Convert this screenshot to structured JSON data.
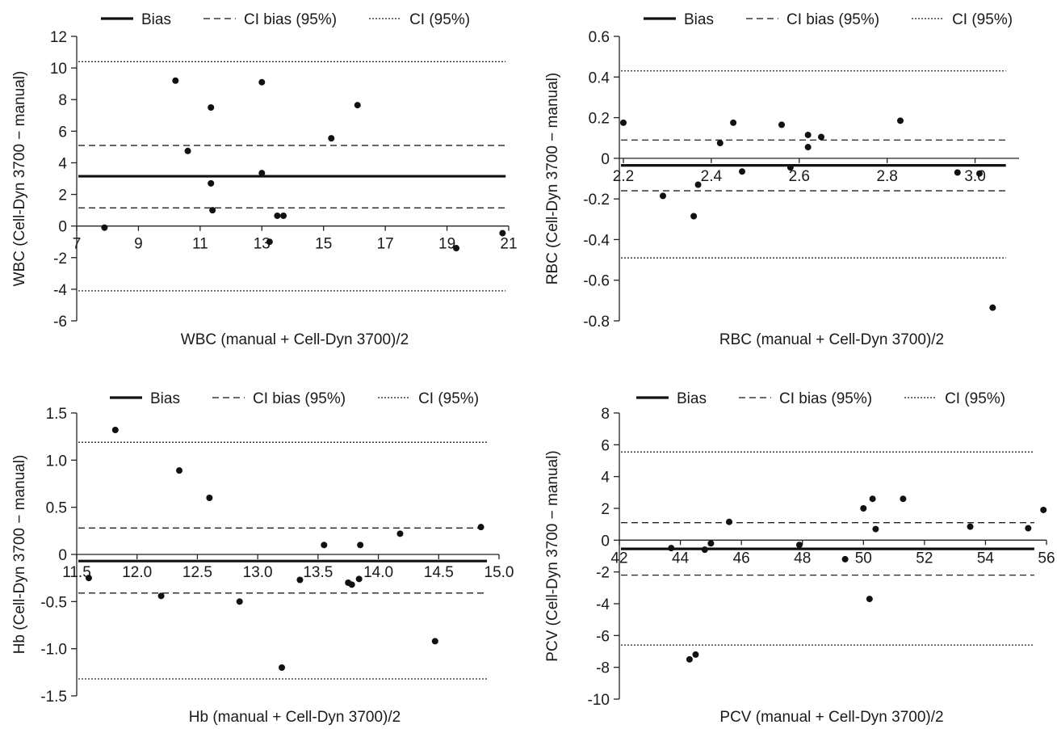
{
  "legend": {
    "bias": "Bias",
    "ci_bias": "CI bias (95%)",
    "ci": "CI (95%)"
  },
  "chart_data": [
    {
      "type": "scatter",
      "name": "WBC",
      "xlabel": "WBC (manual + Cell-Dyn 3700)/2",
      "ylabel": "WBC (Cell-Dyn 3700 − manual)",
      "xlim": [
        7,
        21
      ],
      "ylim": [
        -6,
        12
      ],
      "x_ticks": [
        7,
        9,
        11,
        13,
        15,
        17,
        19,
        21
      ],
      "x_tick_labels": [
        "7",
        "9",
        "11",
        "13",
        "15",
        "17",
        "19",
        "21"
      ],
      "y_ticks": [
        -6,
        -4,
        -2,
        0,
        2,
        4,
        6,
        8,
        10,
        12
      ],
      "y_tick_labels": [
        "-6",
        "-4",
        "-2",
        "0",
        "2",
        "4",
        "6",
        "8",
        "10",
        "12"
      ],
      "bias": 3.15,
      "ci_bias": [
        1.15,
        5.1
      ],
      "ci": [
        -4.1,
        10.4
      ],
      "line_x_end": 20.9,
      "points": [
        {
          "x": 7.9,
          "y": -0.1
        },
        {
          "x": 10.2,
          "y": 9.2
        },
        {
          "x": 10.6,
          "y": 4.75
        },
        {
          "x": 11.35,
          "y": 7.5
        },
        {
          "x": 11.35,
          "y": 2.7
        },
        {
          "x": 11.4,
          "y": 1.0
        },
        {
          "x": 13.0,
          "y": 9.1
        },
        {
          "x": 13.0,
          "y": 3.35
        },
        {
          "x": 13.25,
          "y": -1.0
        },
        {
          "x": 13.5,
          "y": 0.65
        },
        {
          "x": 13.7,
          "y": 0.65
        },
        {
          "x": 15.25,
          "y": 5.55
        },
        {
          "x": 16.1,
          "y": 7.65
        },
        {
          "x": 19.3,
          "y": -1.4
        },
        {
          "x": 20.8,
          "y": -0.45
        }
      ]
    },
    {
      "type": "scatter",
      "name": "RBC",
      "xlabel": "RBC (manual + Cell-Dyn 3700)/2",
      "ylabel": "RBC (Cell-Dyn 3700 − manual)",
      "xlim": [
        2.2,
        3.1
      ],
      "ylim": [
        -0.8,
        0.6
      ],
      "x_ticks": [
        2.2,
        2.4,
        2.6,
        2.8,
        3.0
      ],
      "x_tick_labels": [
        "2.2",
        "2.4",
        "2.6",
        "2.8",
        "3.0"
      ],
      "y_ticks": [
        -0.8,
        -0.6,
        -0.4,
        -0.2,
        0,
        0.2,
        0.4,
        0.6
      ],
      "y_tick_labels": [
        "-0.8",
        "-0.6",
        "-0.4",
        "-0.2",
        "0",
        "0.2",
        "0.4",
        "0.6"
      ],
      "bias": -0.035,
      "ci_bias": [
        -0.16,
        0.09
      ],
      "ci": [
        -0.49,
        0.43
      ],
      "line_x_end": 3.07,
      "points": [
        {
          "x": 2.2,
          "y": 0.175
        },
        {
          "x": 2.29,
          "y": -0.185
        },
        {
          "x": 2.36,
          "y": -0.285
        },
        {
          "x": 2.37,
          "y": -0.13
        },
        {
          "x": 2.42,
          "y": 0.075
        },
        {
          "x": 2.45,
          "y": 0.175
        },
        {
          "x": 2.47,
          "y": -0.065
        },
        {
          "x": 2.56,
          "y": 0.165
        },
        {
          "x": 2.58,
          "y": -0.045
        },
        {
          "x": 2.62,
          "y": 0.055
        },
        {
          "x": 2.62,
          "y": 0.115
        },
        {
          "x": 2.65,
          "y": 0.105
        },
        {
          "x": 2.83,
          "y": 0.185
        },
        {
          "x": 2.96,
          "y": -0.07
        },
        {
          "x": 3.01,
          "y": -0.075
        },
        {
          "x": 3.04,
          "y": -0.735
        }
      ]
    },
    {
      "type": "scatter",
      "name": "Hb",
      "xlabel": "Hb (manual + Cell-Dyn 3700)/2",
      "ylabel": "Hb (Cell-Dyn 3700 − manual)",
      "xlim": [
        11.5,
        15.0
      ],
      "ylim": [
        -1.5,
        1.5
      ],
      "x_ticks": [
        11.5,
        12.0,
        12.5,
        13.0,
        13.5,
        14.0,
        14.5,
        15.0
      ],
      "x_tick_labels": [
        "11.5",
        "12.0",
        "12.5",
        "13.0",
        "13.5",
        "14.0",
        "14.5",
        "15.0"
      ],
      "y_ticks": [
        -1.5,
        -1.0,
        -0.5,
        0,
        0.5,
        1.0,
        1.5
      ],
      "y_tick_labels": [
        "-1.5",
        "-1.0",
        "-0.5",
        "0",
        "0.5",
        "1.0",
        "1.5"
      ],
      "bias": -0.07,
      "ci_bias": [
        -0.41,
        0.28
      ],
      "ci": [
        -1.32,
        1.19
      ],
      "line_x_end": 14.9,
      "points": [
        {
          "x": 11.6,
          "y": -0.25
        },
        {
          "x": 11.82,
          "y": 1.32
        },
        {
          "x": 12.2,
          "y": -0.44
        },
        {
          "x": 12.35,
          "y": 0.89
        },
        {
          "x": 12.6,
          "y": 0.6
        },
        {
          "x": 12.85,
          "y": -0.5
        },
        {
          "x": 13.2,
          "y": -1.2
        },
        {
          "x": 13.35,
          "y": -0.27
        },
        {
          "x": 13.55,
          "y": 0.1
        },
        {
          "x": 13.75,
          "y": -0.3
        },
        {
          "x": 13.78,
          "y": -0.32
        },
        {
          "x": 13.84,
          "y": -0.26
        },
        {
          "x": 13.85,
          "y": 0.1
        },
        {
          "x": 14.18,
          "y": 0.22
        },
        {
          "x": 14.47,
          "y": -0.92
        },
        {
          "x": 14.85,
          "y": 0.29
        }
      ]
    },
    {
      "type": "scatter",
      "name": "PCV",
      "xlabel": "PCV (manual + Cell-Dyn 3700)/2",
      "ylabel": "PCV (Cell-Dyn 3700 − manual)",
      "xlim": [
        42,
        56
      ],
      "ylim": [
        -10,
        8
      ],
      "x_ticks": [
        42,
        44,
        46,
        48,
        50,
        52,
        54,
        56
      ],
      "x_tick_labels": [
        "42",
        "44",
        "46",
        "48",
        "50",
        "52",
        "54",
        "56"
      ],
      "y_ticks": [
        -10,
        -8,
        -6,
        -4,
        -2,
        0,
        2,
        4,
        6,
        8
      ],
      "y_tick_labels": [
        "-10",
        "-8",
        "-6",
        "-4",
        "-2",
        "0",
        "2",
        "4",
        "6",
        "8"
      ],
      "bias": -0.55,
      "ci_bias": [
        -2.2,
        1.1
      ],
      "ci": [
        -6.6,
        5.55
      ],
      "line_x_end": 55.6,
      "points": [
        {
          "x": 43.7,
          "y": -0.5
        },
        {
          "x": 44.3,
          "y": -7.5
        },
        {
          "x": 44.5,
          "y": -7.2
        },
        {
          "x": 44.8,
          "y": -0.6
        },
        {
          "x": 45.0,
          "y": -0.2
        },
        {
          "x": 45.6,
          "y": 1.15
        },
        {
          "x": 47.9,
          "y": -0.3
        },
        {
          "x": 49.4,
          "y": -1.2
        },
        {
          "x": 50.0,
          "y": 2.0
        },
        {
          "x": 50.2,
          "y": -3.7
        },
        {
          "x": 50.3,
          "y": 2.6
        },
        {
          "x": 50.4,
          "y": 0.7
        },
        {
          "x": 51.3,
          "y": 2.6
        },
        {
          "x": 53.5,
          "y": 0.85
        },
        {
          "x": 55.4,
          "y": 0.75
        },
        {
          "x": 55.9,
          "y": 1.9
        }
      ]
    }
  ]
}
